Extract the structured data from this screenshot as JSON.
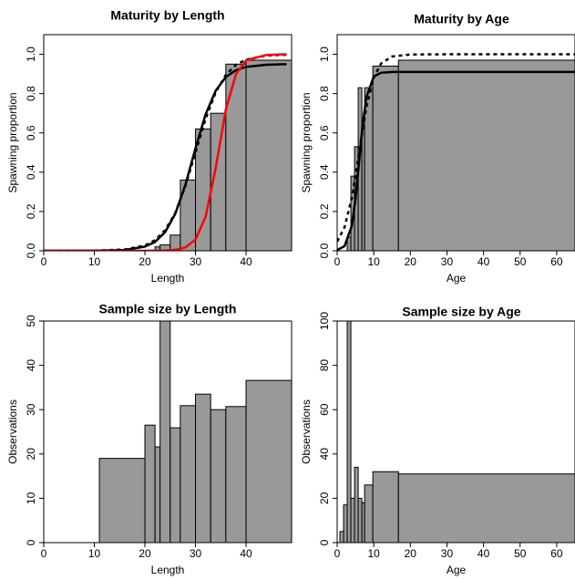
{
  "chart_data": [
    {
      "type": "histogram",
      "title": "Maturity by Length",
      "xlabel": "Length",
      "ylabel": "Spawning proportion",
      "bins": [
        11,
        20,
        22,
        23,
        25,
        27,
        30,
        33,
        36,
        40,
        49
      ],
      "values": [
        0.0,
        0.0,
        0.02,
        0.03,
        0.08,
        0.36,
        0.62,
        0.7,
        0.95,
        0.97
      ],
      "color": "#999999",
      "xlim": [
        0,
        49
      ],
      "ylim": [
        0,
        1.1
      ],
      "xticks": [
        0,
        10,
        20,
        30,
        40
      ],
      "yticks": [
        {
          "value": 0,
          "label": "0.0"
        },
        0.2,
        0.4,
        0.6,
        0.8,
        {
          "value": 1,
          "label": "1.0"
        }
      ],
      "series": [
        {
          "color": "#000000",
          "dash": false,
          "x": [
            0,
            10,
            16,
            20,
            22,
            24,
            26,
            28,
            30,
            32,
            34,
            36,
            38,
            40,
            44,
            48
          ],
          "values": [
            0,
            0.0004,
            0.004,
            0.021,
            0.045,
            0.095,
            0.188,
            0.336,
            0.522,
            0.694,
            0.815,
            0.884,
            0.919,
            0.936,
            0.947,
            0.95
          ]
        },
        {
          "color": "#000000",
          "dash": true,
          "x": [
            0,
            10,
            16,
            20,
            22,
            24,
            26,
            28,
            30,
            32,
            34,
            36,
            38,
            40,
            44,
            48
          ],
          "values": [
            0,
            0.0008,
            0.0067,
            0.027,
            0.054,
            0.105,
            0.193,
            0.329,
            0.5,
            0.671,
            0.807,
            0.895,
            0.946,
            0.973,
            0.994,
            0.998
          ]
        },
        {
          "color": "#ff0000",
          "dash": false,
          "x": [
            0,
            10,
            16,
            20,
            22,
            24,
            26,
            28,
            30,
            32,
            34,
            36,
            38,
            40,
            44,
            48
          ],
          "values": [
            0,
            0,
            0,
            0.0001,
            0.0004,
            0.0014,
            0.005,
            0.017,
            0.057,
            0.173,
            0.422,
            0.719,
            0.899,
            0.969,
            0.997,
            1.0
          ]
        }
      ]
    },
    {
      "type": "histogram",
      "title": "Maturity by Age",
      "xlabel": "Age",
      "ylabel": "Spawning proportion",
      "bins": [
        0.75,
        1.75,
        2.75,
        3.75,
        4.75,
        5.75,
        6.75,
        7.5,
        9.75,
        16.75,
        65
      ],
      "values": [
        0.0,
        0.0,
        0.07,
        0.38,
        0.53,
        0.83,
        0.62,
        0.83,
        0.94,
        0.97
      ],
      "color": "#999999",
      "xlim": [
        0,
        65
      ],
      "ylim": [
        0,
        1.1
      ],
      "xticks": [
        0,
        10,
        20,
        30,
        40,
        50,
        60
      ],
      "yticks": [
        {
          "value": 0,
          "label": "0.0"
        },
        0.2,
        0.4,
        0.6,
        0.8,
        {
          "value": 1,
          "label": "1.0"
        }
      ],
      "series": [
        {
          "color": "#000000",
          "dash": false,
          "x": [
            0,
            2,
            4,
            5,
            6,
            7,
            8,
            10,
            12,
            15,
            20,
            30,
            65
          ],
          "values": [
            0.004,
            0.023,
            0.127,
            0.261,
            0.455,
            0.649,
            0.783,
            0.887,
            0.906,
            0.91,
            0.91,
            0.91,
            0.91
          ]
        },
        {
          "color": "#000000",
          "dash": true,
          "x": [
            0,
            2,
            4,
            5,
            6,
            7,
            8,
            10,
            12,
            15,
            20,
            30,
            65
          ],
          "values": [
            0.047,
            0.119,
            0.269,
            0.378,
            0.5,
            0.622,
            0.731,
            0.881,
            0.953,
            0.989,
            0.999,
            1.0,
            1.0
          ]
        }
      ]
    },
    {
      "type": "histogram",
      "title": "Sample size by Length",
      "xlabel": "Length",
      "ylabel": "Observations",
      "bins": [
        11,
        20,
        22,
        23,
        25,
        27,
        30,
        33,
        36,
        40,
        49
      ],
      "values": [
        19,
        26.5,
        21.6,
        52,
        25.9,
        30.9,
        33.5,
        30,
        30.7,
        36.6
      ],
      "color": "#999999",
      "xlim": [
        0,
        49
      ],
      "ylim": [
        0,
        50
      ],
      "xticks": [
        0,
        10,
        20,
        30,
        40
      ],
      "yticks": [
        0,
        10,
        20,
        30,
        40,
        50
      ]
    },
    {
      "type": "histogram",
      "title": "Sample size by Age",
      "xlabel": "Age",
      "ylabel": "Observations",
      "bins": [
        0.75,
        1.75,
        2.75,
        3.75,
        4.75,
        5.75,
        6.75,
        7.5,
        9.75,
        16.75,
        65
      ],
      "values": [
        5,
        17,
        105,
        20,
        34,
        20,
        18,
        26,
        32,
        31
      ],
      "color": "#999999",
      "xlim": [
        0,
        65
      ],
      "ylim": [
        0,
        100
      ],
      "xticks": [
        0,
        10,
        20,
        30,
        40,
        50,
        60
      ],
      "yticks": [
        0,
        20,
        40,
        60,
        80,
        100
      ]
    }
  ]
}
